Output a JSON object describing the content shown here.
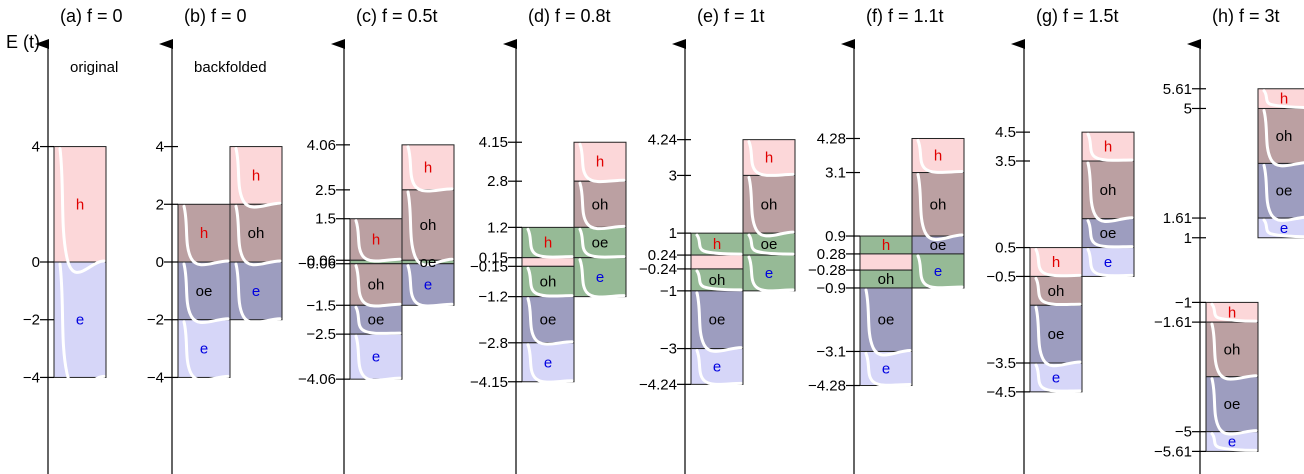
{
  "colors": {
    "h": "#fcd7d9",
    "oh": "#bba0a2",
    "oe": "#9d9dbf",
    "e": "#d6d6f8",
    "mix": "#96ba96",
    "label_h": "#e00000",
    "label_e": "#0000e0",
    "label_mid": "#000000"
  },
  "axis_label": "E (t)",
  "panels": [
    {
      "title": "(a) f = 0",
      "subtitle": "original",
      "ylim": [
        -7,
        7
      ],
      "tick_values": [
        4,
        0,
        -2,
        -4
      ],
      "tick_labels": [
        "4",
        "0",
        "−2",
        "−4"
      ],
      "columns": [
        {
          "bands": [
            {
              "lo": 0,
              "hi": 4,
              "label": "h",
              "color": "h"
            },
            {
              "lo": -4,
              "hi": 0,
              "label": "e",
              "color": "e"
            }
          ]
        }
      ]
    },
    {
      "title": "(b) f = 0",
      "subtitle": "backfolded",
      "ylim": [
        -7,
        7
      ],
      "tick_values": [
        4,
        2,
        0,
        -2,
        -4
      ],
      "tick_labels": [
        "4",
        "2",
        "0",
        "−2",
        "−4"
      ],
      "columns": [
        {
          "bands": [
            {
              "lo": 0,
              "hi": 2,
              "label": "h",
              "color": "oh"
            },
            {
              "lo": -2,
              "hi": 0,
              "label": "oe",
              "color": "oe"
            },
            {
              "lo": -4,
              "hi": -2,
              "label": "e",
              "color": "e"
            }
          ]
        },
        {
          "bands": [
            {
              "lo": 2,
              "hi": 4,
              "label": "h",
              "color": "h"
            },
            {
              "lo": 0,
              "hi": 2,
              "label": "oh",
              "color": "oh"
            },
            {
              "lo": -2,
              "hi": 0,
              "label": "e",
              "color": "oe"
            }
          ]
        }
      ]
    },
    {
      "title": "(c) f = 0.5t",
      "subtitle": "",
      "ylim": [
        -7,
        7
      ],
      "tick_values": [
        4.06,
        2.5,
        1.5,
        0.06,
        -0.06,
        -1.5,
        -2.5,
        -4.06
      ],
      "tick_labels": [
        "4.06",
        "2.5",
        "1.5",
        "0.06",
        "−0.06",
        "−1.5",
        "−2.5",
        "−4.06"
      ],
      "columns": [
        {
          "bands": [
            {
              "lo": 0.06,
              "hi": 1.5,
              "label": "h",
              "color": "oh"
            },
            {
              "lo": -0.06,
              "hi": 0.06,
              "label": "",
              "color": "mix"
            },
            {
              "lo": -1.5,
              "hi": -0.06,
              "label": "oh",
              "color": "oh"
            },
            {
              "lo": -2.5,
              "hi": -1.5,
              "label": "oe",
              "color": "oe"
            },
            {
              "lo": -4.06,
              "hi": -2.5,
              "label": "e",
              "color": "e"
            }
          ]
        },
        {
          "bands": [
            {
              "lo": 2.5,
              "hi": 4.06,
              "label": "h",
              "color": "h"
            },
            {
              "lo": 0.06,
              "hi": 2.5,
              "label": "oh",
              "color": "oh"
            },
            {
              "lo": -0.06,
              "hi": 0.06,
              "label": "oe",
              "color": "mix"
            },
            {
              "lo": -1.5,
              "hi": -0.06,
              "label": "e",
              "color": "oe"
            }
          ]
        }
      ]
    },
    {
      "title": "(d) f = 0.8t",
      "subtitle": "",
      "ylim": [
        -7,
        7
      ],
      "tick_values": [
        4.15,
        2.8,
        1.2,
        0.15,
        -0.15,
        -1.2,
        -2.8,
        -4.15
      ],
      "tick_labels": [
        "4.15",
        "2.8",
        "1.2",
        "0.15",
        "−0.15",
        "−1.2",
        "−2.8",
        "−4.15"
      ],
      "columns": [
        {
          "bands": [
            {
              "lo": 0.15,
              "hi": 1.2,
              "label": "h",
              "color": "mix"
            },
            {
              "lo": -0.15,
              "hi": 0.15,
              "label": "",
              "color": "h"
            },
            {
              "lo": -1.2,
              "hi": -0.15,
              "label": "oh",
              "color": "mix"
            },
            {
              "lo": -2.8,
              "hi": -1.2,
              "label": "oe",
              "color": "oe"
            },
            {
              "lo": -4.15,
              "hi": -2.8,
              "label": "e",
              "color": "e"
            }
          ]
        },
        {
          "bands": [
            {
              "lo": 2.8,
              "hi": 4.15,
              "label": "h",
              "color": "h"
            },
            {
              "lo": 1.2,
              "hi": 2.8,
              "label": "oh",
              "color": "oh"
            },
            {
              "lo": 0.15,
              "hi": 1.2,
              "label": "oe",
              "color": "mix"
            },
            {
              "lo": -1.2,
              "hi": 0.15,
              "label": "e",
              "color": "mix"
            }
          ]
        }
      ]
    },
    {
      "title": "(e) f = 1t",
      "subtitle": "",
      "ylim": [
        -7,
        7
      ],
      "tick_values": [
        4.24,
        3,
        1,
        0.24,
        -0.24,
        -1,
        -3,
        -4.24
      ],
      "tick_labels": [
        "4.24",
        "3",
        "1",
        "0.24",
        "−0.24",
        "−1",
        "−3",
        "−4.24"
      ],
      "columns": [
        {
          "bands": [
            {
              "lo": 0.24,
              "hi": 1,
              "label": "h",
              "color": "mix"
            },
            {
              "lo": -0.24,
              "hi": 0.24,
              "label": "",
              "color": "h"
            },
            {
              "lo": -1,
              "hi": -0.24,
              "label": "oh",
              "color": "mix"
            },
            {
              "lo": -3,
              "hi": -1,
              "label": "oe",
              "color": "oe"
            },
            {
              "lo": -4.24,
              "hi": -3,
              "label": "e",
              "color": "e"
            }
          ]
        },
        {
          "bands": [
            {
              "lo": 3,
              "hi": 4.24,
              "label": "h",
              "color": "h"
            },
            {
              "lo": 1,
              "hi": 3,
              "label": "oh",
              "color": "oh"
            },
            {
              "lo": 0.24,
              "hi": 1,
              "label": "oe",
              "color": "mix"
            },
            {
              "lo": -1,
              "hi": 0.24,
              "label": "e",
              "color": "mix"
            }
          ]
        }
      ]
    },
    {
      "title": "(f) f = 1.1t",
      "subtitle": "",
      "ylim": [
        -7,
        7
      ],
      "tick_values": [
        4.28,
        3.1,
        0.9,
        0.28,
        -0.28,
        -0.9,
        -3.1,
        -4.28
      ],
      "tick_labels": [
        "4.28",
        "3.1",
        "0.9",
        "0.28",
        "−0.28",
        "−0.9",
        "−3.1",
        "−4.28"
      ],
      "columns": [
        {
          "bands": [
            {
              "lo": 0.28,
              "hi": 0.9,
              "label": "h",
              "color": "mix"
            },
            {
              "lo": -0.28,
              "hi": 0.28,
              "label": "",
              "color": "h"
            },
            {
              "lo": -0.9,
              "hi": -0.28,
              "label": "oh",
              "color": "mix"
            },
            {
              "lo": -3.1,
              "hi": -0.9,
              "label": "oe",
              "color": "oe"
            },
            {
              "lo": -4.28,
              "hi": -3.1,
              "label": "e",
              "color": "e"
            }
          ]
        },
        {
          "bands": [
            {
              "lo": 3.1,
              "hi": 4.28,
              "label": "h",
              "color": "h"
            },
            {
              "lo": 0.9,
              "hi": 3.1,
              "label": "oh",
              "color": "oh"
            },
            {
              "lo": 0.28,
              "hi": 0.9,
              "label": "oe",
              "color": "oe"
            },
            {
              "lo": -0.9,
              "hi": 0.28,
              "label": "e",
              "color": "mix"
            }
          ]
        }
      ]
    },
    {
      "title": "(g) f = 1.5t",
      "subtitle": "",
      "ylim": [
        -7,
        7
      ],
      "tick_values": [
        4.5,
        3.5,
        0.5,
        -0.5,
        -3.5,
        -4.5
      ],
      "tick_labels": [
        "4.5",
        "3.5",
        "0.5",
        "−0.5",
        "−3.5",
        "−4.5"
      ],
      "columns": [
        {
          "bands": [
            {
              "lo": -0.5,
              "hi": 0.5,
              "label": "h",
              "color": "h"
            },
            {
              "lo": -1.5,
              "hi": -0.5,
              "label": "oh",
              "color": "oh"
            },
            {
              "lo": -3.5,
              "hi": -1.5,
              "label": "oe",
              "color": "oe"
            },
            {
              "lo": -4.5,
              "hi": -3.5,
              "label": "e",
              "color": "e"
            }
          ]
        },
        {
          "bands": [
            {
              "lo": 3.5,
              "hi": 4.5,
              "label": "h",
              "color": "h"
            },
            {
              "lo": 1.5,
              "hi": 3.5,
              "label": "oh",
              "color": "oh"
            },
            {
              "lo": 0.5,
              "hi": 1.5,
              "label": "oe",
              "color": "oe"
            },
            {
              "lo": -0.5,
              "hi": 0.5,
              "label": "e",
              "color": "e"
            }
          ]
        }
      ]
    },
    {
      "title": "(h) f = 3t",
      "subtitle": "",
      "ylim": [
        -6,
        6.5
      ],
      "tick_values": [
        5.61,
        5,
        1.61,
        1,
        -1,
        -1.61,
        -5,
        -5.61
      ],
      "tick_labels": [
        "5.61",
        "5",
        "1.61",
        "1",
        "−1",
        "−1.61",
        "−5",
        "−5.61"
      ],
      "columns": [
        {
          "bands": [
            {
              "lo": -1.61,
              "hi": -1,
              "label": "h",
              "color": "h"
            },
            {
              "lo": -3.3,
              "hi": -1.61,
              "label": "oh",
              "color": "oh"
            },
            {
              "lo": -5,
              "hi": -3.3,
              "label": "oe",
              "color": "oe"
            },
            {
              "lo": -5.61,
              "hi": -5,
              "label": "e",
              "color": "e"
            }
          ]
        },
        {
          "bands": [
            {
              "lo": 5,
              "hi": 5.61,
              "label": "h",
              "color": "h"
            },
            {
              "lo": 3.3,
              "hi": 5,
              "label": "oh",
              "color": "oh"
            },
            {
              "lo": 1.61,
              "hi": 3.3,
              "label": "oe",
              "color": "oe"
            },
            {
              "lo": 1,
              "hi": 1.61,
              "label": "e",
              "color": "e"
            }
          ]
        }
      ]
    }
  ]
}
